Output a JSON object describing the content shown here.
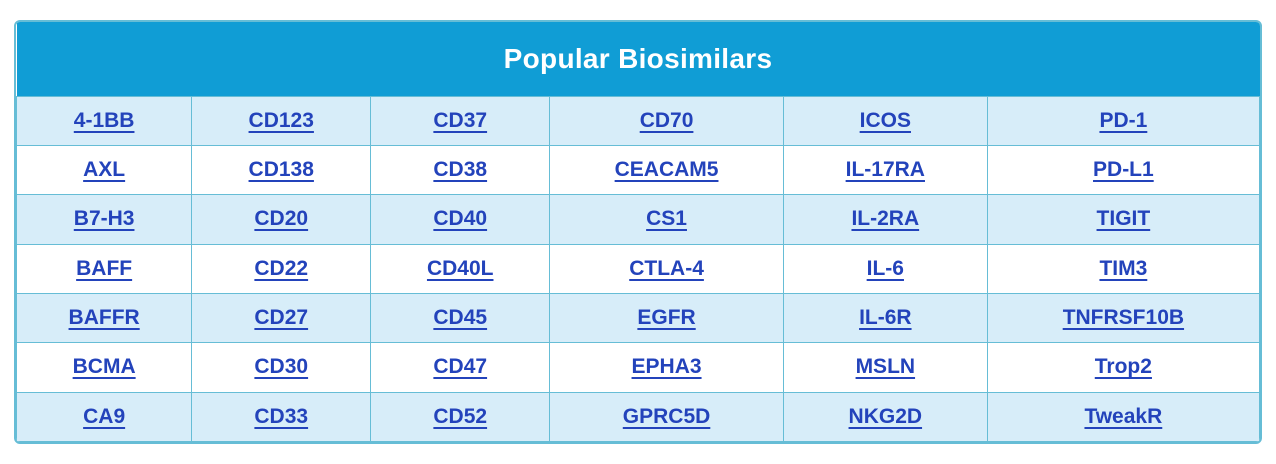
{
  "table": {
    "title": "Popular Biosimilars",
    "columns": 6,
    "rows": [
      [
        "4-1BB",
        "CD123",
        "CD37",
        "CD70",
        "ICOS",
        "PD-1"
      ],
      [
        "AXL",
        "CD138",
        "CD38",
        "CEACAM5",
        "IL-17RA",
        "PD-L1"
      ],
      [
        "B7-H3",
        "CD20",
        "CD40",
        "CS1",
        "IL-2RA",
        "TIGIT"
      ],
      [
        "BAFF",
        "CD22",
        "CD40L",
        "CTLA-4",
        "IL-6",
        "TIM3"
      ],
      [
        "BAFFR",
        "CD27",
        "CD45",
        "EGFR",
        "IL-6R",
        "TNFRSF10B"
      ],
      [
        "BCMA",
        "CD30",
        "CD47",
        "EPHA3",
        "MSLN",
        "Trop2"
      ],
      [
        "CA9",
        "CD33",
        "CD52",
        "GPRC5D",
        "NKG2D",
        "TweakR"
      ]
    ],
    "colors": {
      "header_bg": "#109dd5",
      "header_text": "#ffffff",
      "row_alt_bg": "#d7edf9",
      "row_bg": "#ffffff",
      "link": "#2343bb",
      "border": "#66bdd6"
    }
  }
}
